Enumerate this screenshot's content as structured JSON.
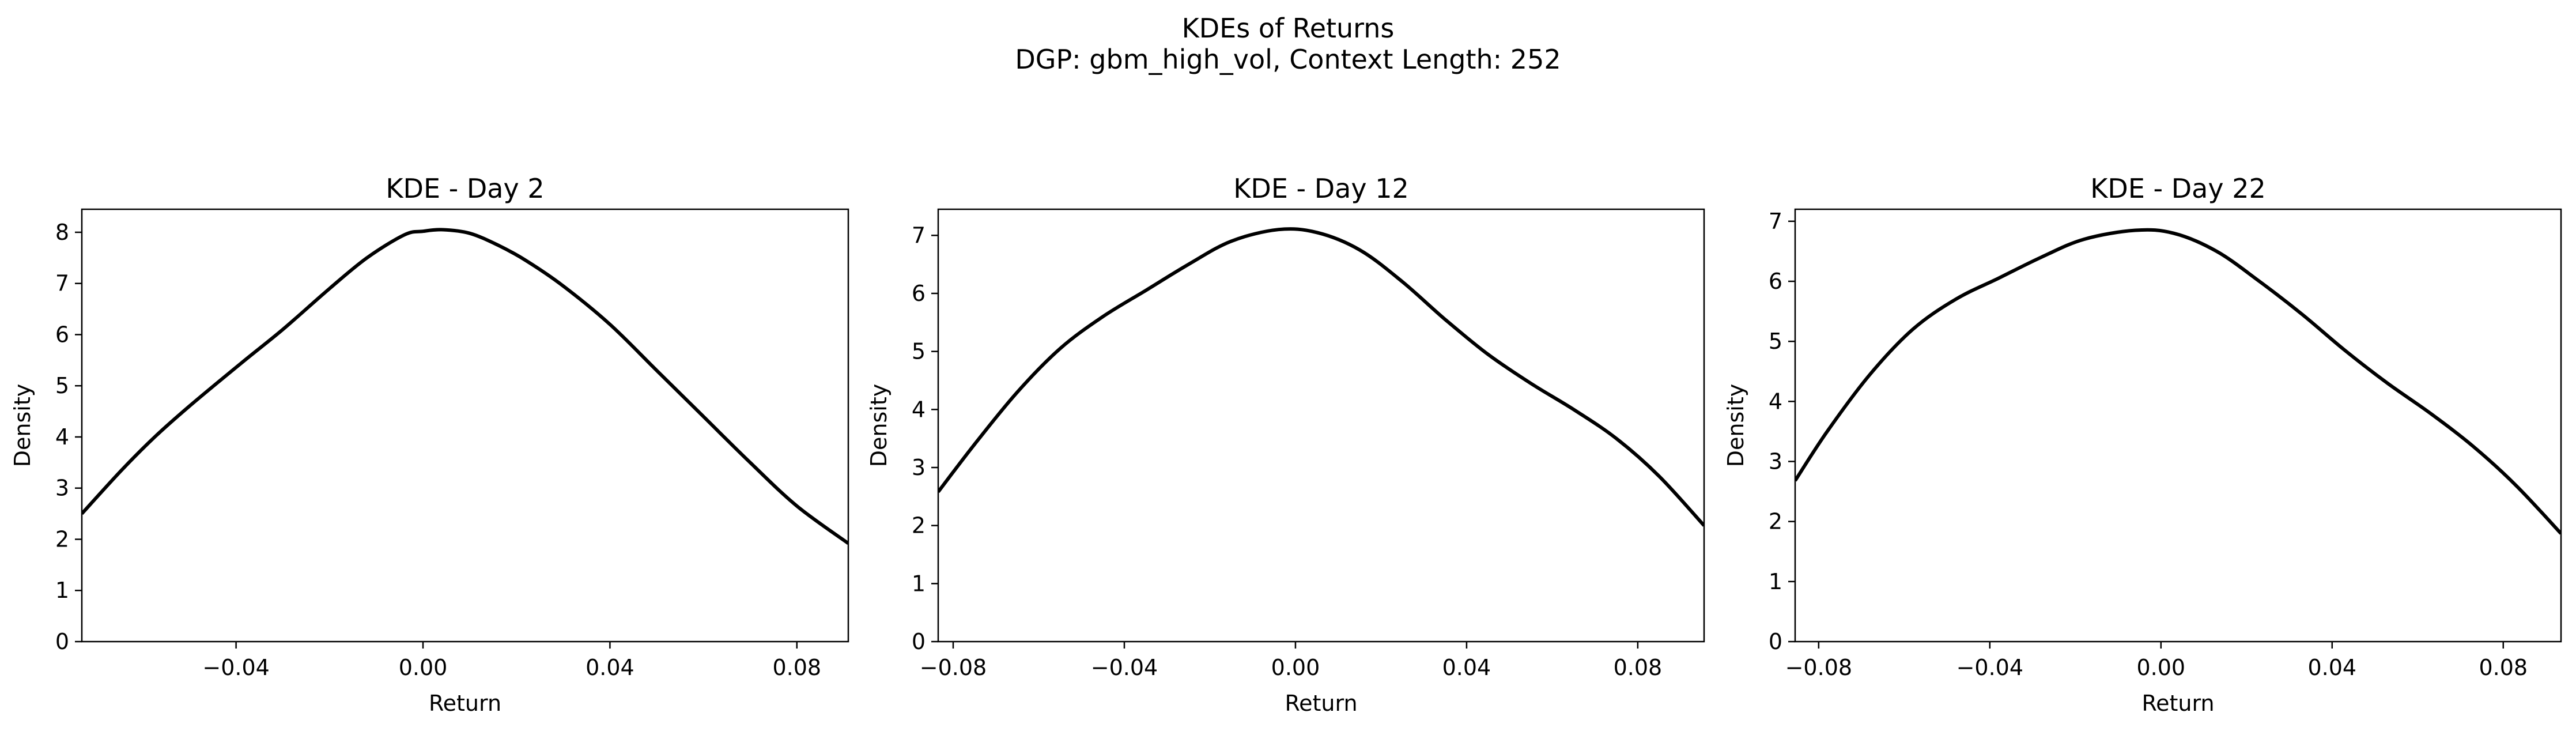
{
  "figure": {
    "suptitle_line1": "KDEs of Returns",
    "suptitle_line2": "DGP: gbm_high_vol, Context Length: 252"
  },
  "chart_data": [
    {
      "type": "line",
      "title": "KDE - Day 2",
      "xlabel": "Return",
      "ylabel": "Density",
      "xlim": [
        -0.073,
        0.091
      ],
      "ylim": [
        0,
        8.45
      ],
      "xticks": [
        -0.04,
        0.0,
        0.04,
        0.08
      ],
      "xtick_labels": [
        "−0.04",
        "0.00",
        "0.04",
        "0.08"
      ],
      "yticks": [
        0,
        1,
        2,
        3,
        4,
        5,
        6,
        7,
        8
      ],
      "ytick_labels": [
        "0",
        "1",
        "2",
        "3",
        "4",
        "5",
        "6",
        "7",
        "8"
      ],
      "grid": false,
      "line_color": "#000000",
      "x": [
        -0.073,
        -0.0645,
        -0.0574,
        -0.05,
        -0.0388,
        -0.03,
        -0.02,
        -0.012,
        -0.004,
        0.0,
        0.0043,
        0.01,
        0.016,
        0.022,
        0.03,
        0.04,
        0.05,
        0.06,
        0.07,
        0.08,
        0.091
      ],
      "y": [
        2.5,
        3.35,
        4.0,
        4.6,
        5.45,
        6.1,
        6.9,
        7.5,
        7.95,
        8.02,
        8.05,
        7.98,
        7.75,
        7.45,
        6.95,
        6.2,
        5.3,
        4.4,
        3.5,
        2.65,
        1.92
      ]
    },
    {
      "type": "line",
      "title": "KDE - Day 12",
      "xlabel": "Return",
      "ylabel": "Density",
      "xlim": [
        -0.0835,
        0.0955
      ],
      "ylim": [
        0,
        7.45
      ],
      "xticks": [
        -0.08,
        -0.04,
        0.0,
        0.04,
        0.08
      ],
      "xtick_labels": [
        "−0.08",
        "−0.04",
        "0.00",
        "0.04",
        "0.08"
      ],
      "yticks": [
        0,
        1,
        2,
        3,
        4,
        5,
        6,
        7
      ],
      "ytick_labels": [
        "0",
        "1",
        "2",
        "3",
        "4",
        "5",
        "6",
        "7"
      ],
      "grid": false,
      "line_color": "#000000",
      "x": [
        -0.0835,
        -0.075,
        -0.065,
        -0.055,
        -0.045,
        -0.035,
        -0.025,
        -0.015,
        -0.004,
        0.005,
        0.015,
        0.025,
        0.035,
        0.045,
        0.055,
        0.065,
        0.075,
        0.085,
        0.0955
      ],
      "y": [
        2.58,
        3.4,
        4.3,
        5.05,
        5.6,
        6.05,
        6.5,
        6.9,
        7.1,
        7.05,
        6.75,
        6.2,
        5.55,
        4.95,
        4.45,
        4.0,
        3.5,
        2.85,
        2.0
      ]
    },
    {
      "type": "line",
      "title": "KDE - Day 22",
      "xlabel": "Return",
      "ylabel": "Density",
      "xlim": [
        -0.0855,
        0.0935
      ],
      "ylim": [
        0,
        7.2
      ],
      "xticks": [
        -0.08,
        -0.04,
        0.0,
        0.04,
        0.08
      ],
      "xtick_labels": [
        "−0.08",
        "−0.04",
        "0.00",
        "0.04",
        "0.08"
      ],
      "yticks": [
        0,
        1,
        2,
        3,
        4,
        5,
        6,
        7
      ],
      "ytick_labels": [
        "0",
        "1",
        "2",
        "3",
        "4",
        "5",
        "6",
        "7"
      ],
      "grid": false,
      "line_color": "#000000",
      "x": [
        -0.0855,
        -0.078,
        -0.068,
        -0.058,
        -0.048,
        -0.038,
        -0.028,
        -0.018,
        -0.006,
        0.003,
        0.013,
        0.023,
        0.033,
        0.043,
        0.053,
        0.063,
        0.073,
        0.083,
        0.0935
      ],
      "y": [
        2.68,
        3.5,
        4.45,
        5.2,
        5.7,
        6.05,
        6.4,
        6.7,
        6.85,
        6.8,
        6.5,
        6.0,
        5.45,
        4.85,
        4.3,
        3.8,
        3.25,
        2.6,
        1.8
      ]
    }
  ]
}
